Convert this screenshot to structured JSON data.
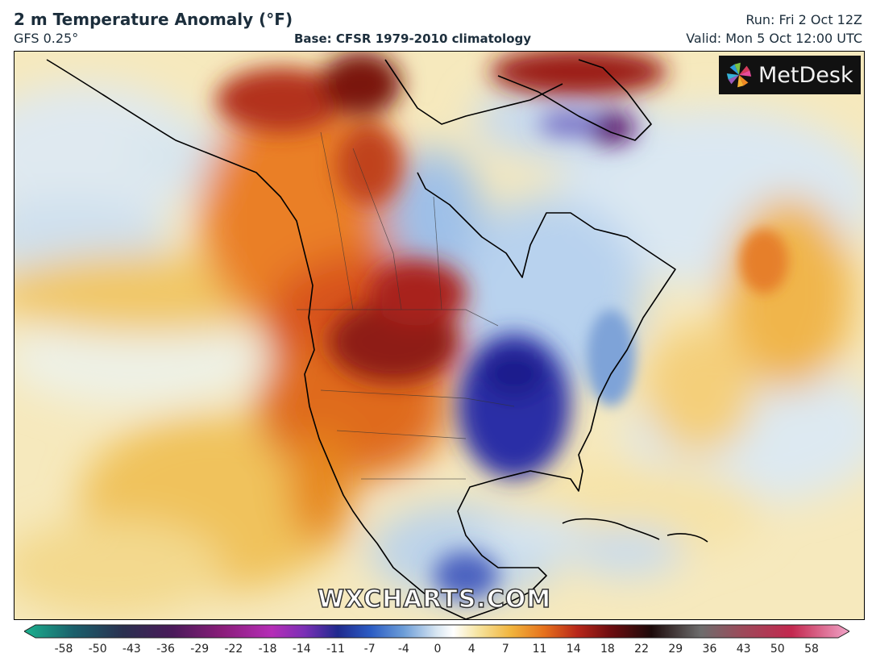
{
  "header": {
    "title": "2 m Temperature Anomaly (°F)",
    "model": "GFS 0.25°",
    "base": "Base: CFSR 1979-2010 climatology",
    "run": "Run: Fri 2 Oct 12Z",
    "valid": "Valid: Mon 5 Oct 12:00 UTC"
  },
  "logo": {
    "text": "MetDesk",
    "icon": "metdesk-pinwheel-icon"
  },
  "watermark": "WXCHARTS.COM",
  "colorbar": {
    "ticks": [
      "-58",
      "-50",
      "-43",
      "-36",
      "-29",
      "-22",
      "-18",
      "-14",
      "-11",
      "-7",
      "-4",
      "0",
      "4",
      "7",
      "11",
      "14",
      "18",
      "22",
      "29",
      "36",
      "43",
      "50",
      "58"
    ]
  },
  "colors": {
    "warm_strong": "#8e1a10",
    "warm": "#e0641c",
    "warm_light": "#f3c25a",
    "neutral": "#faf3dc",
    "cool_light": "#d9e8f2",
    "cool": "#5d8fd0",
    "cold": "#2b2fa6",
    "very_cold": "#5a0a66"
  }
}
